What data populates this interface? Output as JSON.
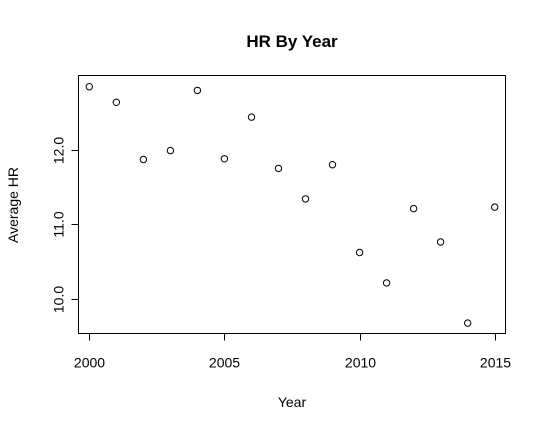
{
  "chart_data": {
    "type": "scatter",
    "title": "HR By Year",
    "xlabel": "Year",
    "ylabel": "Average HR",
    "xlim": [
      1999.6,
      2015.4
    ],
    "ylim": [
      9.53,
      13.0
    ],
    "xticks": [
      2000,
      2005,
      2010,
      2015
    ],
    "xtick_labels": [
      "2000",
      "2005",
      "2010",
      "2015"
    ],
    "yticks": [
      10.0,
      11.0,
      12.0
    ],
    "ytick_labels": [
      "10.0",
      "11.0",
      "12.0"
    ],
    "grid": false,
    "marker": "open-circle",
    "points": [
      {
        "x": 2000,
        "y": 12.85
      },
      {
        "x": 2001,
        "y": 12.64
      },
      {
        "x": 2002,
        "y": 11.87
      },
      {
        "x": 2003,
        "y": 11.99
      },
      {
        "x": 2004,
        "y": 12.8
      },
      {
        "x": 2005,
        "y": 11.88
      },
      {
        "x": 2006,
        "y": 12.44
      },
      {
        "x": 2007,
        "y": 11.75
      },
      {
        "x": 2008,
        "y": 11.34
      },
      {
        "x": 2009,
        "y": 11.8
      },
      {
        "x": 2010,
        "y": 10.62
      },
      {
        "x": 2011,
        "y": 10.21
      },
      {
        "x": 2012,
        "y": 11.21
      },
      {
        "x": 2013,
        "y": 10.76
      },
      {
        "x": 2014,
        "y": 9.67
      },
      {
        "x": 2015,
        "y": 11.23
      }
    ]
  }
}
